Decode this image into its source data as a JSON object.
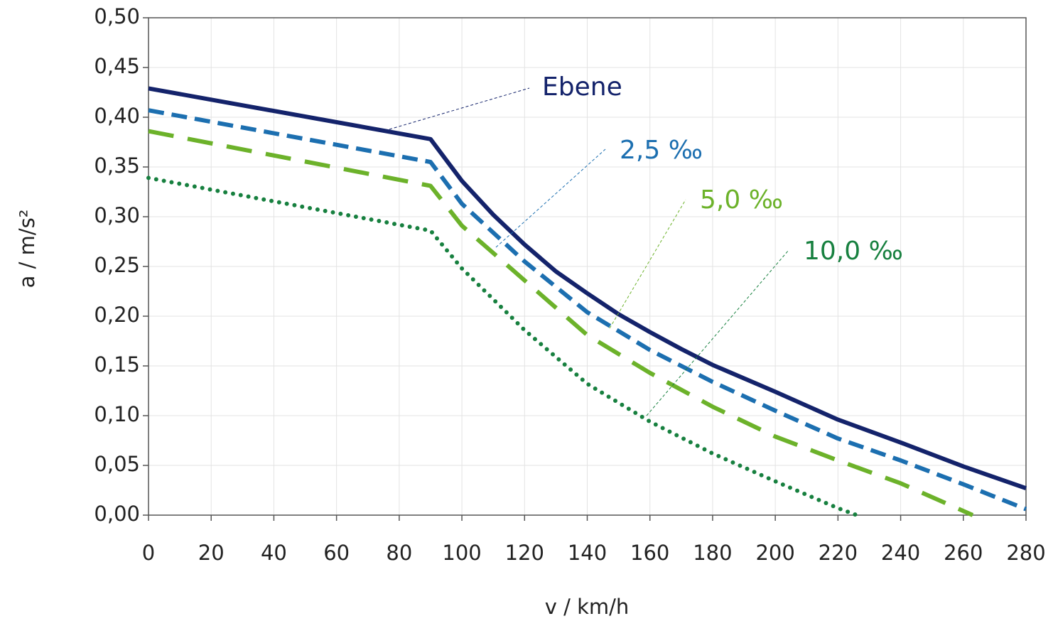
{
  "chart_data": {
    "type": "line",
    "xlabel": "v / km/h",
    "ylabel": "a / m/s²",
    "xlim": [
      0,
      280
    ],
    "ylim": [
      0,
      0.5
    ],
    "xticks": [
      0,
      20,
      40,
      60,
      80,
      100,
      120,
      140,
      160,
      180,
      200,
      220,
      240,
      260,
      280
    ],
    "yticks": [
      {
        "value": 0,
        "label": "0,00"
      },
      {
        "value": 0.05,
        "label": "0,05"
      },
      {
        "value": 0.1,
        "label": "0,10"
      },
      {
        "value": 0.15,
        "label": "0,15"
      },
      {
        "value": 0.2,
        "label": "0,20"
      },
      {
        "value": 0.25,
        "label": "0,25"
      },
      {
        "value": 0.3,
        "label": "0,30"
      },
      {
        "value": 0.35,
        "label": "0,35"
      },
      {
        "value": 0.4,
        "label": "0,40"
      },
      {
        "value": 0.45,
        "label": "0,45"
      },
      {
        "value": 0.5,
        "label": "0,50"
      }
    ],
    "grid": true,
    "series": [
      {
        "name": "Ebene",
        "color": "#14236b",
        "style": "solid",
        "x": [
          0,
          90,
          100,
          110,
          120,
          130,
          140,
          150,
          160,
          170,
          180,
          200,
          220,
          240,
          260,
          280
        ],
        "values": [
          0.429,
          0.378,
          0.336,
          0.302,
          0.272,
          0.245,
          0.223,
          0.202,
          0.184,
          0.167,
          0.151,
          0.124,
          0.096,
          0.073,
          0.049,
          0.027
        ]
      },
      {
        "name": "2,5 ‰",
        "color": "#1c6fb0",
        "style": "dashed",
        "x": [
          0,
          90,
          100,
          120,
          140,
          160,
          180,
          200,
          220,
          240,
          260,
          280
        ],
        "values": [
          0.407,
          0.355,
          0.313,
          0.255,
          0.204,
          0.166,
          0.134,
          0.105,
          0.077,
          0.055,
          0.031,
          0.006
        ]
      },
      {
        "name": "5,0 ‰",
        "color": "#6cb22a",
        "style": "longdash",
        "x": [
          0,
          90,
          100,
          120,
          140,
          160,
          180,
          200,
          220,
          240,
          263
        ],
        "values": [
          0.386,
          0.331,
          0.291,
          0.236,
          0.181,
          0.143,
          0.109,
          0.079,
          0.055,
          0.032,
          0
        ]
      },
      {
        "name": "10,0 ‰",
        "color": "#17803f",
        "style": "dotted",
        "x": [
          0,
          90,
          100,
          120,
          140,
          160,
          180,
          200,
          220,
          226
        ],
        "values": [
          0.339,
          0.286,
          0.248,
          0.186,
          0.132,
          0.094,
          0.062,
          0.034,
          0.007,
          0
        ]
      }
    ]
  }
}
